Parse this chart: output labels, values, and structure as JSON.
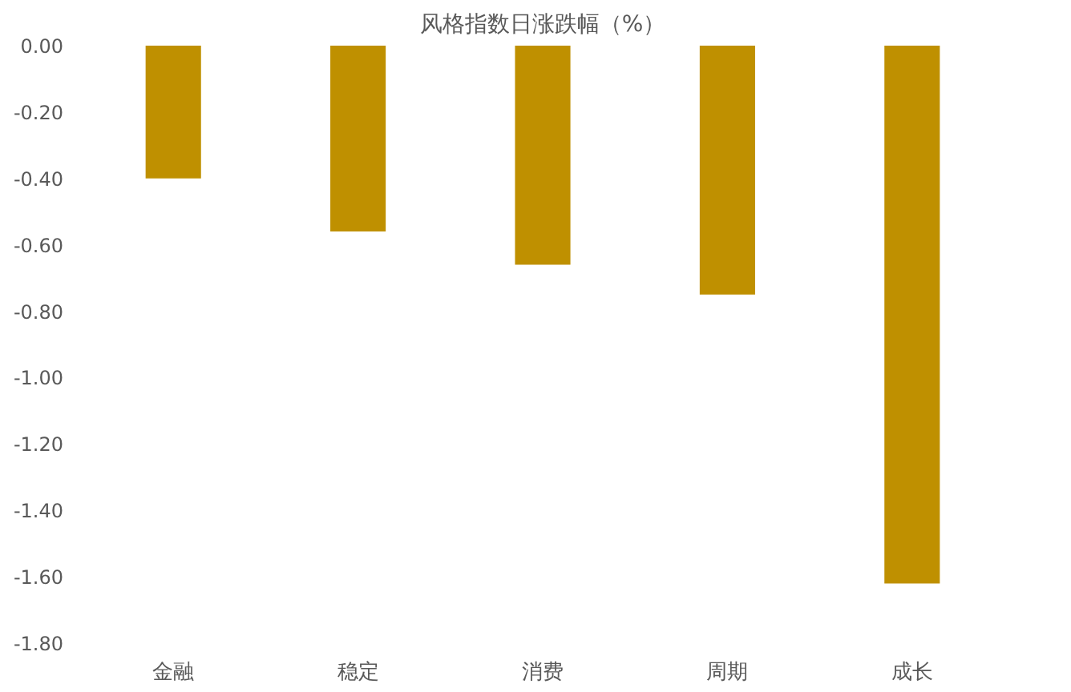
{
  "chart_data": {
    "type": "bar",
    "title": "风格指数日涨跌幅（%）",
    "categories": [
      "金融",
      "稳定",
      "消费",
      "周期",
      "成长"
    ],
    "series": [
      {
        "color": "#bf9000",
        "values": [
          -0.4,
          -0.56,
          -0.66,
          -0.75,
          -1.62
        ]
      }
    ],
    "ylim": [
      -1.8,
      0
    ],
    "yticks": [
      {
        "value": 0,
        "label": "0.00"
      },
      {
        "value": -0.2,
        "label": "-0.20"
      },
      {
        "value": -0.4,
        "label": "-0.40"
      },
      {
        "value": -0.6,
        "label": "-0.60"
      },
      {
        "value": -0.8,
        "label": "-0.80"
      },
      {
        "value": -1.0,
        "label": "-1.00"
      },
      {
        "value": -1.2,
        "label": "-1.20"
      },
      {
        "value": -1.4,
        "label": "-1.40"
      },
      {
        "value": -1.6,
        "label": "-1.60"
      },
      {
        "value": -1.8,
        "label": "-1.80"
      }
    ],
    "grid": false
  }
}
